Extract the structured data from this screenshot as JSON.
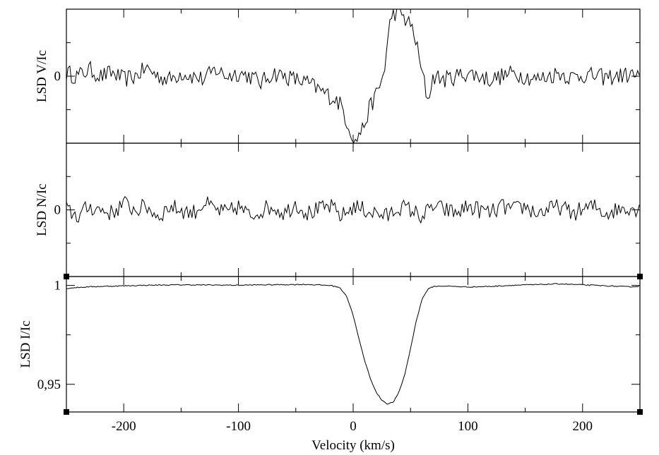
{
  "chart_data": [
    {
      "type": "line",
      "panel": "top",
      "ylabel": "LSD V/Ic",
      "yticks": [
        0
      ],
      "xlim": [
        -250,
        250
      ],
      "ylim": [
        -1.0,
        1.0
      ],
      "series": [
        {
          "x": [
            -250,
            -240,
            -230,
            -220,
            -210,
            -200,
            -190,
            -180,
            -170,
            -160,
            -150,
            -140,
            -130,
            -120,
            -110,
            -100,
            -90,
            -80,
            -70,
            -60,
            -50,
            -40,
            -30,
            -20,
            -15,
            -10,
            -5,
            0,
            2,
            5,
            8,
            12,
            15,
            18,
            22,
            26,
            28,
            30,
            33,
            36,
            40,
            42,
            45,
            48,
            52,
            55,
            58,
            62,
            65,
            70,
            80,
            90,
            100,
            110,
            120,
            130,
            140,
            150,
            160,
            170,
            180,
            190,
            200,
            210,
            220,
            230,
            240,
            250
          ],
          "y": [
            0.05,
            0.0,
            0.1,
            0.0,
            0.05,
            -0.05,
            0.0,
            0.12,
            0.0,
            -0.05,
            0.05,
            0.0,
            -0.05,
            0.1,
            0.0,
            0.05,
            0.0,
            -0.1,
            0.05,
            0.0,
            -0.05,
            -0.1,
            -0.2,
            -0.3,
            -0.35,
            -0.45,
            -0.7,
            -0.9,
            -1.0,
            -0.85,
            -0.8,
            -0.6,
            -0.45,
            -0.35,
            -0.2,
            0.0,
            0.2,
            0.5,
            0.9,
            0.95,
            0.92,
            0.95,
            0.85,
            0.8,
            0.7,
            0.5,
            0.2,
            -0.1,
            -0.35,
            0.0,
            -0.05,
            0.0,
            0.05,
            0.0,
            -0.05,
            0.0,
            0.05,
            0.0,
            -0.05,
            0.0,
            0.05,
            -0.02,
            0.02,
            0.0,
            -0.02,
            0.0,
            0.02,
            0.0
          ]
        }
      ]
    },
    {
      "type": "line",
      "panel": "middle",
      "ylabel": "LSD N/Ic",
      "yticks": [
        0
      ],
      "xlim": [
        -250,
        250
      ],
      "ylim": [
        -1.0,
        1.0
      ],
      "series": [
        {
          "x": [
            -250,
            -240,
            -230,
            -220,
            -210,
            -200,
            -190,
            -180,
            -170,
            -160,
            -150,
            -140,
            -130,
            -120,
            -110,
            -100,
            -90,
            -80,
            -70,
            -60,
            -50,
            -40,
            -30,
            -20,
            -10,
            0,
            10,
            20,
            30,
            40,
            50,
            60,
            70,
            80,
            90,
            100,
            110,
            120,
            130,
            140,
            150,
            160,
            170,
            180,
            190,
            200,
            210,
            220,
            230,
            240,
            250
          ],
          "y": [
            0.0,
            -0.1,
            0.05,
            0.0,
            -0.05,
            0.1,
            0.0,
            0.05,
            -0.1,
            0.05,
            0.0,
            -0.05,
            0.1,
            0.0,
            -0.05,
            0.05,
            -0.1,
            0.0,
            0.05,
            -0.05,
            0.1,
            -0.05,
            0.0,
            0.05,
            -0.1,
            0.05,
            0.0,
            -0.05,
            -0.1,
            0.05,
            0.0,
            -0.1,
            0.05,
            0.0,
            -0.05,
            0.05,
            0.0,
            -0.05,
            0.05,
            0.0,
            0.05,
            -0.05,
            0.0,
            0.05,
            -0.05,
            0.0,
            0.05,
            -0.05,
            0.0,
            0.05,
            0.0
          ]
        }
      ]
    },
    {
      "type": "line",
      "panel": "bottom",
      "xlabel": "Velocity (km/s)",
      "ylabel": "LSD I/Ic",
      "yticks": [
        1,
        0.95
      ],
      "ytick_labels": [
        "1",
        "0,95"
      ],
      "xticks": [
        -200,
        -100,
        0,
        100,
        200
      ],
      "xlim": [
        -250,
        250
      ],
      "ylim": [
        0.936,
        1.0045
      ],
      "series": [
        {
          "x": [
            -250,
            -240,
            -230,
            -220,
            -200,
            -180,
            -150,
            -120,
            -100,
            -80,
            -60,
            -40,
            -20,
            -12,
            -6,
            0,
            5,
            10,
            15,
            20,
            25,
            30,
            35,
            40,
            45,
            50,
            55,
            60,
            65,
            70,
            80,
            100,
            120,
            140,
            160,
            180,
            200,
            220,
            240,
            250
          ],
          "y": [
            0.9985,
            0.999,
            0.9993,
            0.9995,
            0.9998,
            1.0001,
            1.0003,
            1.0002,
            1.0001,
            1.0003,
            1.0004,
            1.0005,
            1.0,
            0.999,
            0.995,
            0.985,
            0.973,
            0.962,
            0.953,
            0.946,
            0.942,
            0.94,
            0.941,
            0.946,
            0.955,
            0.968,
            0.982,
            0.993,
            0.998,
            0.9995,
            0.9997,
            0.9992,
            0.9995,
            1.0001,
            1.0004,
            1.0008,
            1.0003,
            0.9998,
            0.9993,
            0.9995
          ]
        }
      ]
    }
  ]
}
